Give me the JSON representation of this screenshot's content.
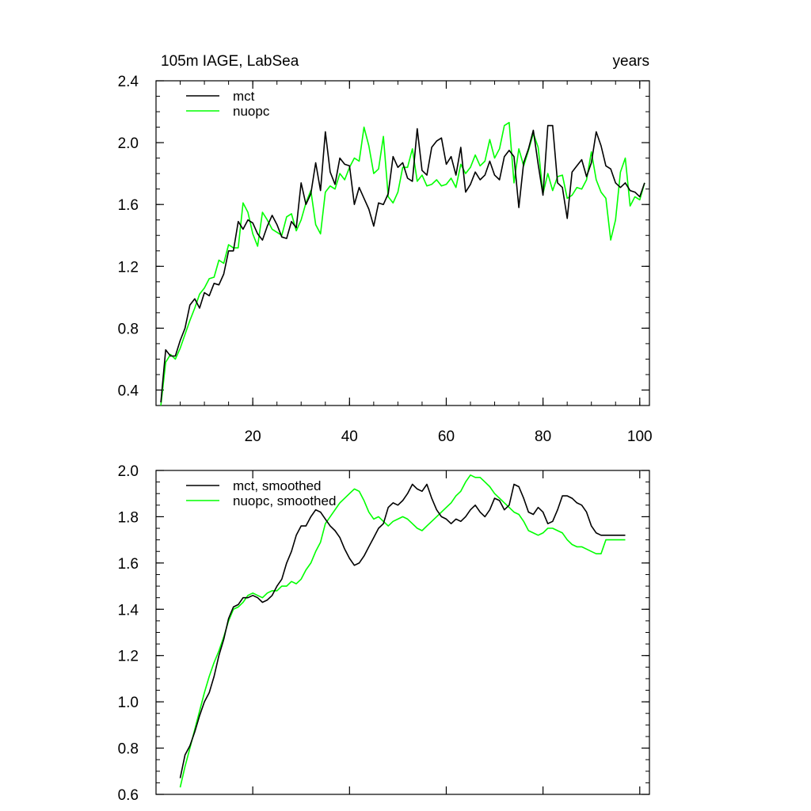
{
  "chart_data": [
    {
      "type": "line",
      "title": "105m IAGE, LabSea",
      "title_right": "years",
      "ylim": [
        0.3,
        2.4
      ],
      "xlim": [
        0,
        102
      ],
      "yticks": [
        0.4,
        0.8,
        1.2,
        1.6,
        2.0,
        2.4
      ],
      "ytick_labels": [
        "0.4",
        "0.8",
        "1.2",
        "1.6",
        "2.0",
        "2.4"
      ],
      "xticks": [
        20,
        40,
        60,
        80,
        100
      ],
      "xtick_labels": [
        "20",
        "40",
        "60",
        "80",
        "100"
      ],
      "legend_position": "top-left",
      "series": [
        {
          "name": "mct",
          "color": "#000000",
          "x": [
            1,
            2,
            3,
            4,
            5,
            6,
            7,
            8,
            9,
            10,
            11,
            12,
            13,
            14,
            15,
            16,
            17,
            18,
            19,
            20,
            21,
            22,
            23,
            24,
            25,
            26,
            27,
            28,
            29,
            30,
            31,
            32,
            33,
            34,
            35,
            36,
            37,
            38,
            39,
            40,
            41,
            42,
            43,
            44,
            45,
            46,
            47,
            48,
            49,
            50,
            51,
            52,
            53,
            54,
            55,
            56,
            57,
            58,
            59,
            60,
            61,
            62,
            63,
            64,
            65,
            66,
            67,
            68,
            69,
            70,
            71,
            72,
            73,
            74,
            75,
            76,
            77,
            78,
            79,
            80,
            81,
            82,
            83,
            84,
            85,
            86,
            87,
            88,
            89,
            90,
            91,
            92,
            93,
            94,
            95,
            96,
            97,
            98,
            99,
            100,
            101
          ],
          "values": [
            0.32,
            0.66,
            0.62,
            0.62,
            0.72,
            0.8,
            0.95,
            0.99,
            0.93,
            1.03,
            1.01,
            1.09,
            1.08,
            1.15,
            1.3,
            1.3,
            1.49,
            1.44,
            1.5,
            1.48,
            1.41,
            1.37,
            1.46,
            1.53,
            1.47,
            1.39,
            1.38,
            1.49,
            1.45,
            1.74,
            1.6,
            1.67,
            1.87,
            1.69,
            2.07,
            1.81,
            1.73,
            1.9,
            1.86,
            1.85,
            1.6,
            1.71,
            1.64,
            1.57,
            1.46,
            1.61,
            1.6,
            1.67,
            1.91,
            1.84,
            1.87,
            1.77,
            1.75,
            2.09,
            1.82,
            1.79,
            1.97,
            2.01,
            2.03,
            1.86,
            1.91,
            1.79,
            1.97,
            1.68,
            1.73,
            1.81,
            1.76,
            1.79,
            1.88,
            1.79,
            1.76,
            1.91,
            1.95,
            1.91,
            1.58,
            1.87,
            1.96,
            2.08,
            1.86,
            1.66,
            2.11,
            2.11,
            1.74,
            1.71,
            1.51,
            1.81,
            1.85,
            1.89,
            1.78,
            1.87,
            2.07,
            1.98,
            1.85,
            1.83,
            1.74,
            1.71,
            1.74,
            1.69,
            1.68,
            1.65,
            1.74
          ]
        },
        {
          "name": "nuopc",
          "color": "#00ff00",
          "x": [
            1,
            2,
            3,
            4,
            5,
            6,
            7,
            8,
            9,
            10,
            11,
            12,
            13,
            14,
            15,
            16,
            17,
            18,
            19,
            20,
            21,
            22,
            23,
            24,
            25,
            26,
            27,
            28,
            29,
            30,
            31,
            32,
            33,
            34,
            35,
            36,
            37,
            38,
            39,
            40,
            41,
            42,
            43,
            44,
            45,
            46,
            47,
            48,
            49,
            50,
            51,
            52,
            53,
            54,
            55,
            56,
            57,
            58,
            59,
            60,
            61,
            62,
            63,
            64,
            65,
            66,
            67,
            68,
            69,
            70,
            71,
            72,
            73,
            74,
            75,
            76,
            77,
            78,
            79,
            80,
            81,
            82,
            83,
            84,
            85,
            86,
            87,
            88,
            89,
            90,
            91,
            92,
            93,
            94,
            95,
            96,
            97,
            98,
            99,
            100,
            101
          ],
          "values": [
            0.3,
            0.58,
            0.63,
            0.6,
            0.67,
            0.76,
            0.85,
            0.93,
            1.02,
            1.06,
            1.12,
            1.13,
            1.24,
            1.22,
            1.34,
            1.32,
            1.32,
            1.61,
            1.55,
            1.41,
            1.33,
            1.55,
            1.5,
            1.44,
            1.42,
            1.4,
            1.52,
            1.54,
            1.43,
            1.5,
            1.61,
            1.69,
            1.47,
            1.41,
            1.68,
            1.72,
            1.7,
            1.8,
            1.76,
            1.84,
            1.9,
            1.88,
            2.1,
            1.98,
            1.8,
            1.83,
            2.04,
            1.65,
            1.61,
            1.68,
            1.84,
            1.84,
            1.96,
            1.75,
            1.79,
            1.72,
            1.73,
            1.76,
            1.72,
            1.73,
            1.77,
            1.71,
            1.86,
            1.8,
            1.84,
            1.92,
            1.85,
            1.88,
            2.02,
            1.9,
            1.96,
            2.11,
            2.13,
            1.74,
            1.96,
            1.85,
            1.95,
            2.06,
            1.97,
            1.67,
            1.8,
            1.69,
            1.78,
            1.79,
            1.64,
            1.66,
            1.71,
            1.7,
            1.76,
            1.94,
            1.76,
            1.68,
            1.64,
            1.37,
            1.5,
            1.81,
            1.9,
            1.59,
            1.65,
            1.63,
            1.74
          ]
        }
      ]
    },
    {
      "type": "line",
      "ylim": [
        0.6,
        2.0
      ],
      "xlim": [
        0,
        102
      ],
      "yticks": [
        0.6,
        0.8,
        1.0,
        1.2,
        1.4,
        1.6,
        1.8,
        2.0
      ],
      "ytick_labels": [
        "0.6",
        "0.8",
        "1.0",
        "1.2",
        "1.4",
        "1.6",
        "1.8",
        "2.0"
      ],
      "xticks": [
        20,
        40,
        60,
        80,
        100
      ],
      "legend_position": "top-left",
      "series": [
        {
          "name": "mct, smoothed",
          "color": "#000000",
          "x": [
            5,
            6,
            7,
            8,
            9,
            10,
            11,
            12,
            13,
            14,
            15,
            16,
            17,
            18,
            19,
            20,
            21,
            22,
            23,
            24,
            25,
            26,
            27,
            28,
            29,
            30,
            31,
            32,
            33,
            34,
            35,
            36,
            37,
            38,
            39,
            40,
            41,
            42,
            43,
            44,
            45,
            46,
            47,
            48,
            49,
            50,
            51,
            52,
            53,
            54,
            55,
            56,
            57,
            58,
            59,
            60,
            61,
            62,
            63,
            64,
            65,
            66,
            67,
            68,
            69,
            70,
            71,
            72,
            73,
            74,
            75,
            76,
            77,
            78,
            79,
            80,
            81,
            82,
            83,
            84,
            85,
            86,
            87,
            88,
            89,
            90,
            91,
            92,
            93,
            94,
            95,
            96,
            97
          ],
          "values": [
            0.67,
            0.77,
            0.81,
            0.87,
            0.94,
            1.0,
            1.04,
            1.11,
            1.2,
            1.27,
            1.36,
            1.41,
            1.42,
            1.45,
            1.45,
            1.46,
            1.45,
            1.43,
            1.44,
            1.46,
            1.5,
            1.53,
            1.6,
            1.65,
            1.72,
            1.76,
            1.76,
            1.8,
            1.83,
            1.82,
            1.79,
            1.76,
            1.74,
            1.71,
            1.66,
            1.62,
            1.59,
            1.6,
            1.63,
            1.67,
            1.71,
            1.75,
            1.77,
            1.84,
            1.86,
            1.85,
            1.87,
            1.9,
            1.94,
            1.92,
            1.91,
            1.94,
            1.88,
            1.83,
            1.8,
            1.79,
            1.77,
            1.79,
            1.78,
            1.8,
            1.83,
            1.85,
            1.82,
            1.8,
            1.83,
            1.88,
            1.87,
            1.83,
            1.85,
            1.94,
            1.93,
            1.88,
            1.82,
            1.81,
            1.84,
            1.82,
            1.77,
            1.78,
            1.83,
            1.89,
            1.89,
            1.88,
            1.86,
            1.85,
            1.82,
            1.76,
            1.73,
            1.72,
            1.72,
            1.72,
            1.72,
            1.72,
            1.72
          ]
        },
        {
          "name": "nuopc, smoothed",
          "color": "#00ff00",
          "x": [
            5,
            6,
            7,
            8,
            9,
            10,
            11,
            12,
            13,
            14,
            15,
            16,
            17,
            18,
            19,
            20,
            21,
            22,
            23,
            24,
            25,
            26,
            27,
            28,
            29,
            30,
            31,
            32,
            33,
            34,
            35,
            36,
            37,
            38,
            39,
            40,
            41,
            42,
            43,
            44,
            45,
            46,
            47,
            48,
            49,
            50,
            51,
            52,
            53,
            54,
            55,
            56,
            57,
            58,
            59,
            60,
            61,
            62,
            63,
            64,
            65,
            66,
            67,
            68,
            69,
            70,
            71,
            72,
            73,
            74,
            75,
            76,
            77,
            78,
            79,
            80,
            81,
            82,
            83,
            84,
            85,
            86,
            87,
            88,
            89,
            90,
            91,
            92,
            93,
            94,
            95,
            96,
            97
          ],
          "values": [
            0.63,
            0.72,
            0.8,
            0.88,
            0.96,
            1.04,
            1.11,
            1.17,
            1.22,
            1.28,
            1.35,
            1.4,
            1.41,
            1.43,
            1.46,
            1.47,
            1.46,
            1.45,
            1.47,
            1.48,
            1.48,
            1.5,
            1.5,
            1.52,
            1.51,
            1.53,
            1.57,
            1.6,
            1.65,
            1.69,
            1.77,
            1.8,
            1.83,
            1.86,
            1.88,
            1.9,
            1.92,
            1.91,
            1.87,
            1.82,
            1.79,
            1.8,
            1.78,
            1.76,
            1.78,
            1.79,
            1.8,
            1.79,
            1.77,
            1.75,
            1.74,
            1.76,
            1.78,
            1.8,
            1.82,
            1.84,
            1.86,
            1.89,
            1.91,
            1.95,
            1.98,
            1.97,
            1.97,
            1.95,
            1.93,
            1.9,
            1.88,
            1.86,
            1.84,
            1.82,
            1.81,
            1.78,
            1.74,
            1.73,
            1.72,
            1.73,
            1.75,
            1.75,
            1.74,
            1.73,
            1.7,
            1.68,
            1.67,
            1.67,
            1.66,
            1.65,
            1.64,
            1.64,
            1.7,
            1.7,
            1.7,
            1.7,
            1.7
          ]
        }
      ]
    }
  ]
}
